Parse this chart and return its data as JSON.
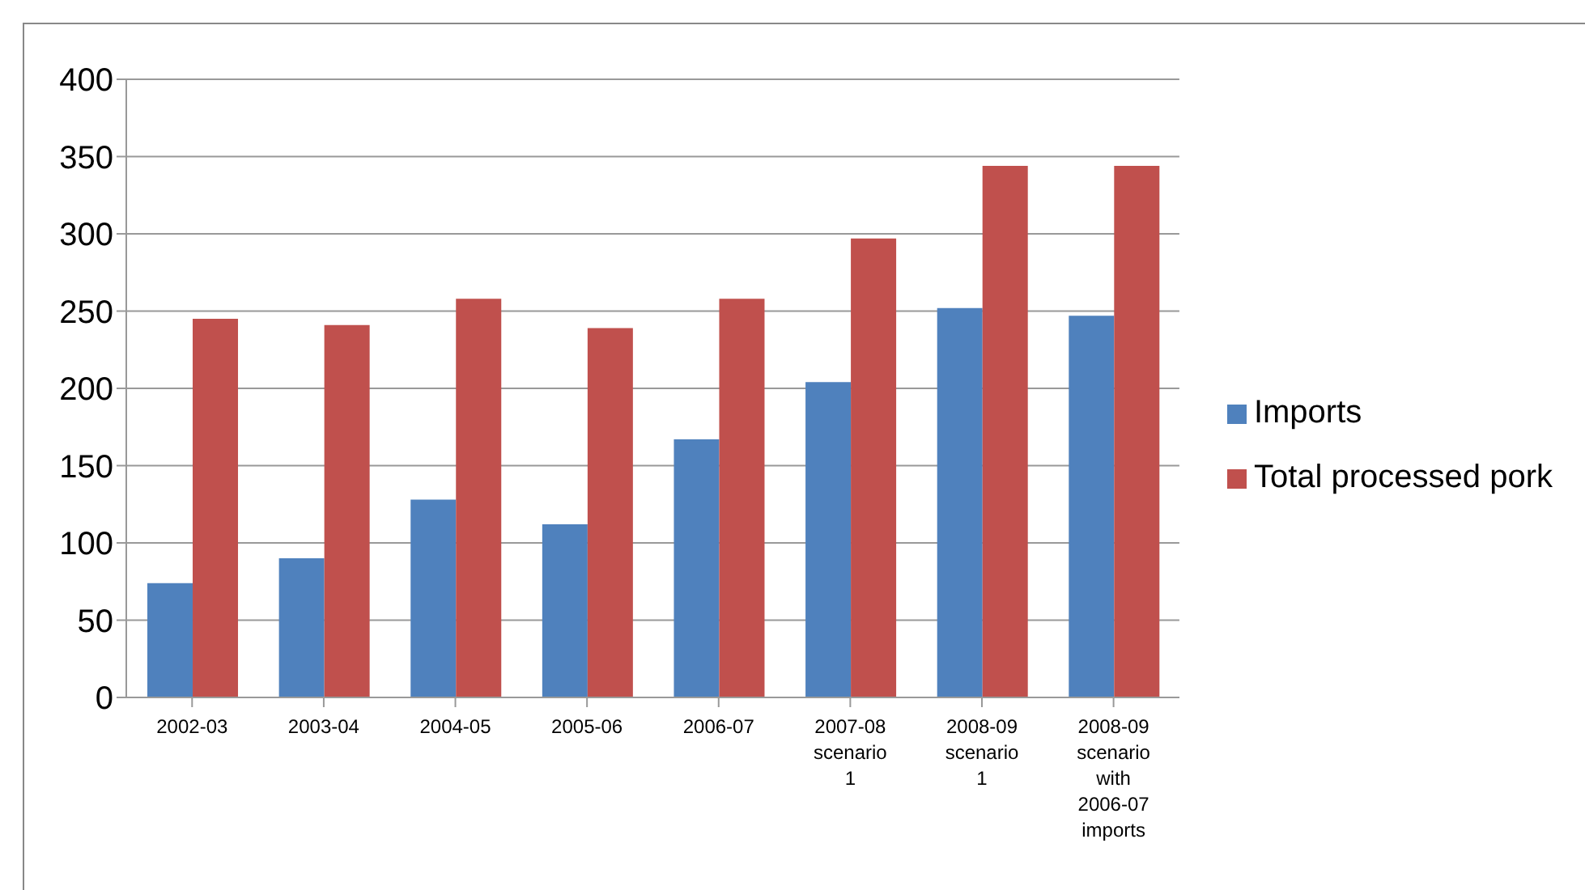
{
  "chart_data": {
    "type": "bar",
    "categories": [
      "2002-03",
      "2003-04",
      "2004-05",
      "2005-06",
      "2006-07",
      "2007-08 scenario 1",
      "2008-09 scenario 1",
      "2008-09 scenario with 2006-07 imports"
    ],
    "series": [
      {
        "name": "Imports",
        "color": "#4f81bd",
        "values": [
          74,
          90,
          128,
          112,
          167,
          204,
          252,
          247
        ]
      },
      {
        "name": "Total processed pork",
        "color": "#c0504d",
        "values": [
          245,
          241,
          258,
          239,
          258,
          297,
          344,
          344
        ]
      }
    ],
    "ylim": [
      0,
      400
    ],
    "yticks": [
      0,
      50,
      100,
      150,
      200,
      250,
      300,
      350,
      400
    ],
    "grid": "y",
    "legend": "right"
  }
}
